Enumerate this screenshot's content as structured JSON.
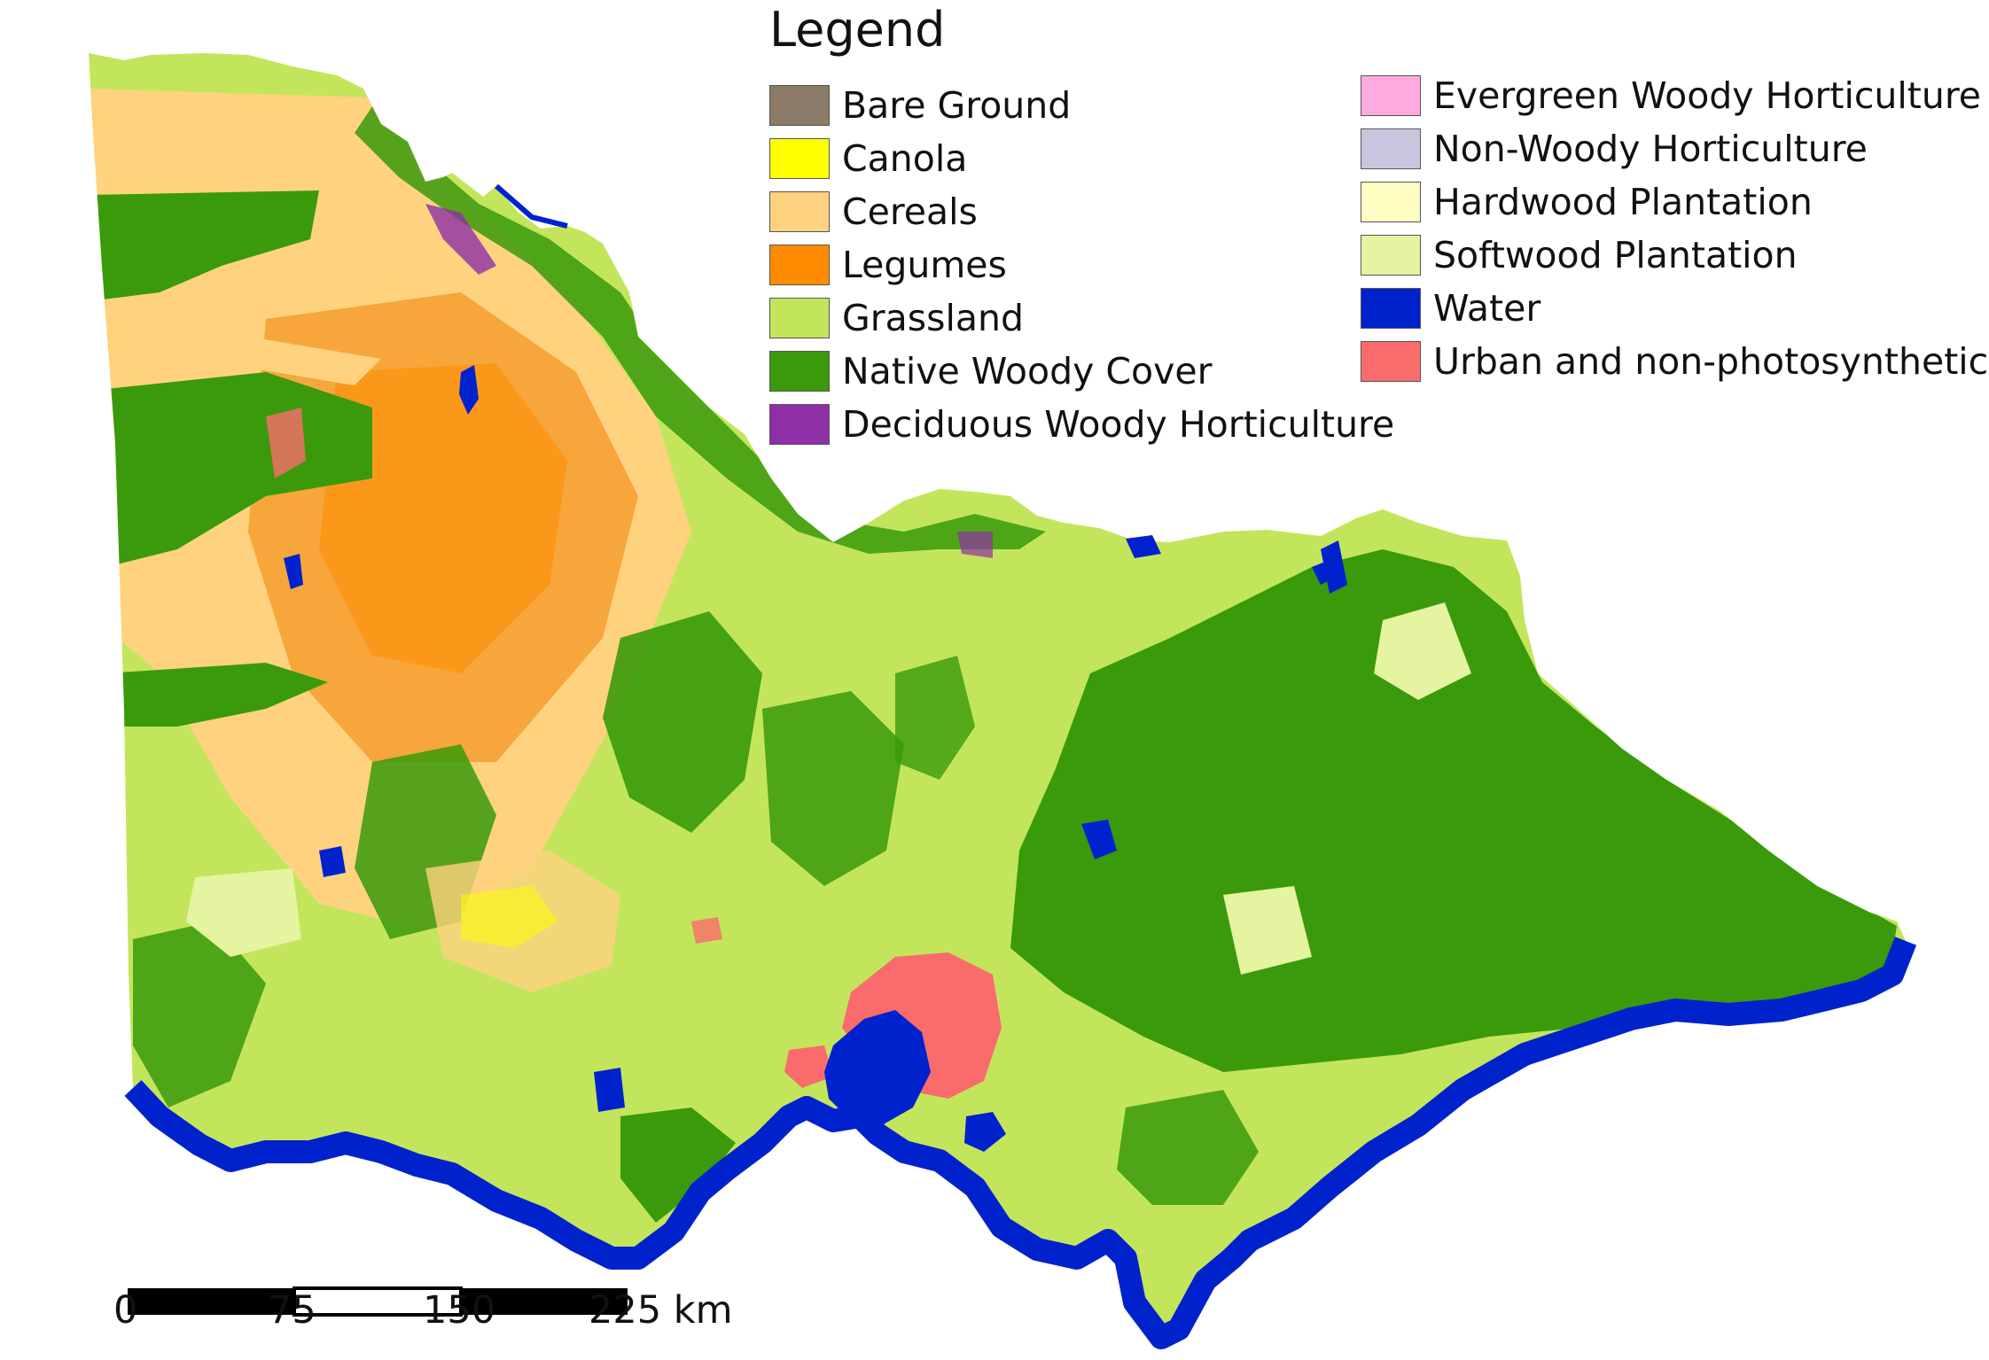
{
  "legend": {
    "title": "Legend",
    "items": [
      {
        "label": "Bare Ground",
        "color": "#8b7b67"
      },
      {
        "label": "Canola",
        "color": "#ffff00"
      },
      {
        "label": "Cereals",
        "color": "#ffd27f"
      },
      {
        "label": "Legumes",
        "color": "#ff8c00"
      },
      {
        "label": "Grassland",
        "color": "#c3e55c"
      },
      {
        "label": "Native Woody Cover",
        "color": "#3a9a0b"
      },
      {
        "label": "Deciduous Woody Horticulture",
        "color": "#8e2fa6"
      },
      {
        "label": "Evergreen Woody Horticulture",
        "color": "#ffaadf"
      },
      {
        "label": "Non-Woody Horticulture",
        "color": "#c8c6de"
      },
      {
        "label": "Hardwood Plantation",
        "color": "#ffffc4"
      },
      {
        "label": "Softwood Plantation",
        "color": "#e4f4a0"
      },
      {
        "label": "Water",
        "color": "#0022cc"
      },
      {
        "label": "Urban and non-photosynthetic",
        "color": "#fa6b6b"
      }
    ]
  },
  "scale_bar": {
    "ticks": [
      "0",
      "75",
      "150",
      "225 km"
    ]
  }
}
